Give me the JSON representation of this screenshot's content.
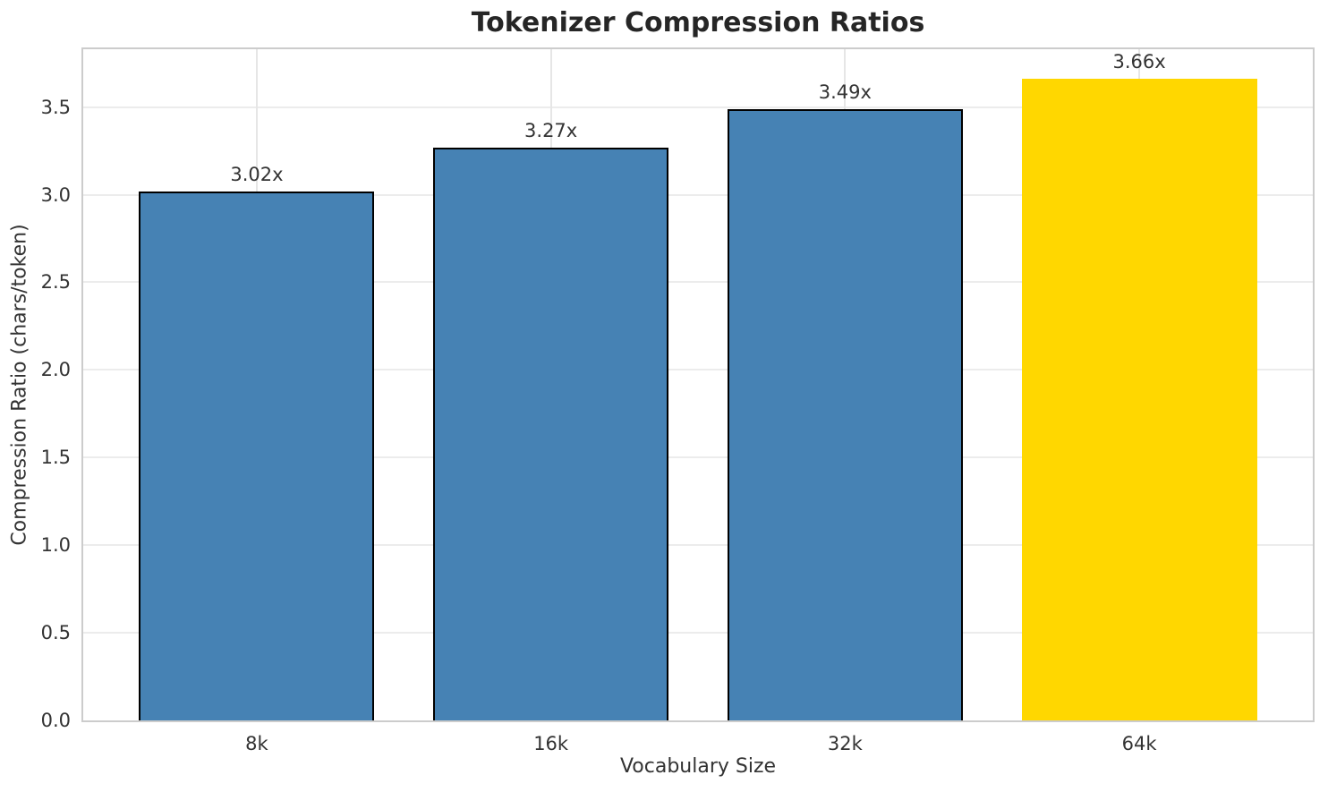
{
  "chart_data": {
    "type": "bar",
    "title": "Tokenizer Compression Ratios",
    "xlabel": "Vocabulary Size",
    "ylabel": "Compression Ratio (chars/token)",
    "categories": [
      "8k",
      "16k",
      "32k",
      "64k"
    ],
    "values": [
      3.02,
      3.27,
      3.49,
      3.66
    ],
    "bar_labels": [
      "3.02x",
      "3.27x",
      "3.49x",
      "3.66x"
    ],
    "bar_colors": [
      "#4682B4",
      "#4682B4",
      "#4682B4",
      "#FFD700"
    ],
    "bar_edge_colors": [
      "#000000",
      "#000000",
      "#000000",
      "none"
    ],
    "highlight_category": "64k",
    "yticks": [
      0.0,
      0.5,
      1.0,
      1.5,
      2.0,
      2.5,
      3.0,
      3.5
    ],
    "ytick_labels": [
      "0.0",
      "0.5",
      "1.0",
      "1.5",
      "2.0",
      "2.5",
      "3.0",
      "3.5"
    ],
    "ylim": [
      0,
      3.83
    ],
    "xlim": [
      -0.59,
      3.59
    ],
    "bar_width": 0.8,
    "grid": true,
    "legend_position": "none",
    "colors": {
      "spine": "#cccccc",
      "grid": "#ececec",
      "text": "#333333",
      "title_text": "#262626",
      "background": "#ffffff"
    }
  }
}
